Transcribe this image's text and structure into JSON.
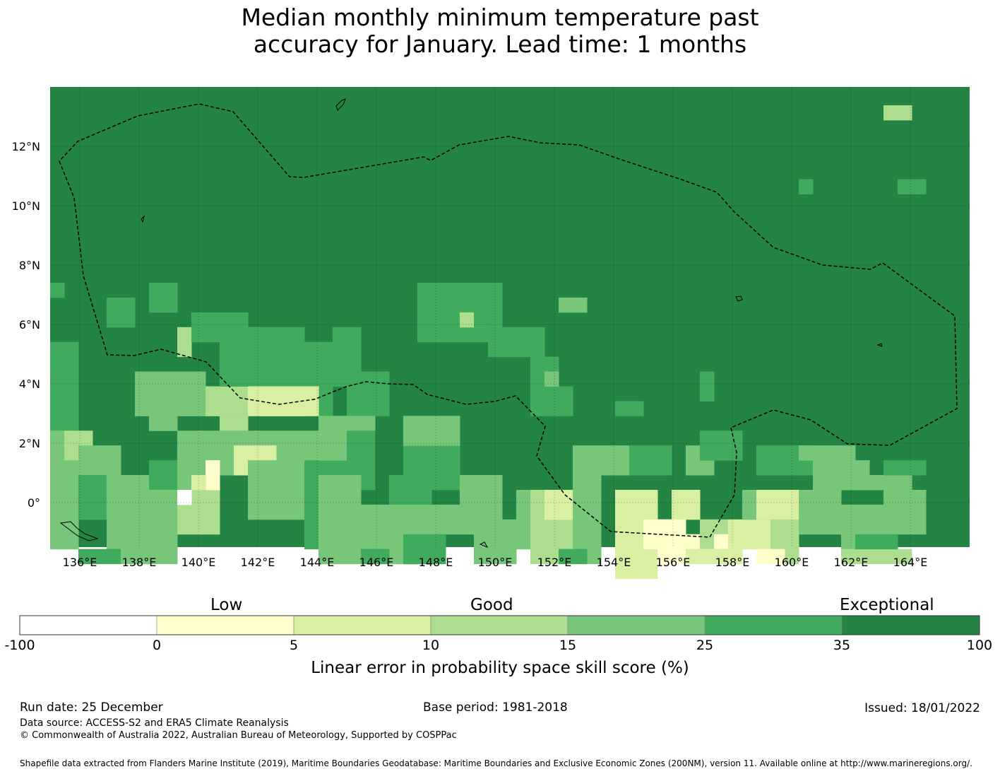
{
  "title": {
    "line1": "Median monthly minimum temperature past",
    "line2": "accuracy for January. Lead time: 1 months"
  },
  "map": {
    "lon_range": [
      135,
      166
    ],
    "lat_range": [
      -1.5,
      14
    ],
    "x_ticks": [
      "136°E",
      "138°E",
      "140°E",
      "142°E",
      "144°E",
      "146°E",
      "148°E",
      "150°E",
      "152°E",
      "154°E",
      "156°E",
      "158°E",
      "160°E",
      "162°E",
      "164°E"
    ],
    "y_ticks": [
      "12°N",
      "10°N",
      "8°N",
      "6°N",
      "4°N",
      "2°N",
      "0°"
    ],
    "fill_color": "#238443"
  },
  "colorbar": {
    "category_labels": [
      "Low",
      "Good",
      "Exceptional"
    ],
    "tick_labels": [
      "-100",
      "0",
      "5",
      "10",
      "15",
      "25",
      "35",
      "100"
    ],
    "colors": [
      "#ffffff",
      "#ffffcc",
      "#d9f0a3",
      "#addd8e",
      "#78c679",
      "#41ab5d",
      "#238443"
    ],
    "title": "Linear error in probability space skill score (%)"
  },
  "footer": {
    "run_date": "Run date: 25 December",
    "base_period": "Base period: 1981-2018",
    "issued": "Issued: 18/01/2022",
    "data_source": "Data source: ACCESS-S2 and ERA5 Climate Reanalysis",
    "copyright": "© Commonwealth of Australia 2022, Australian Bureau of Meteorology, Supported by COSPPac",
    "shapefile": "Shapefile data extracted from Flanders Marine Institute (2019), Maritime Boundaries Geodatabase: Maritime Boundaries and Exclusive Economic Zones (200NM), version 11. Available online at http://www.marineregions.org/."
  }
}
